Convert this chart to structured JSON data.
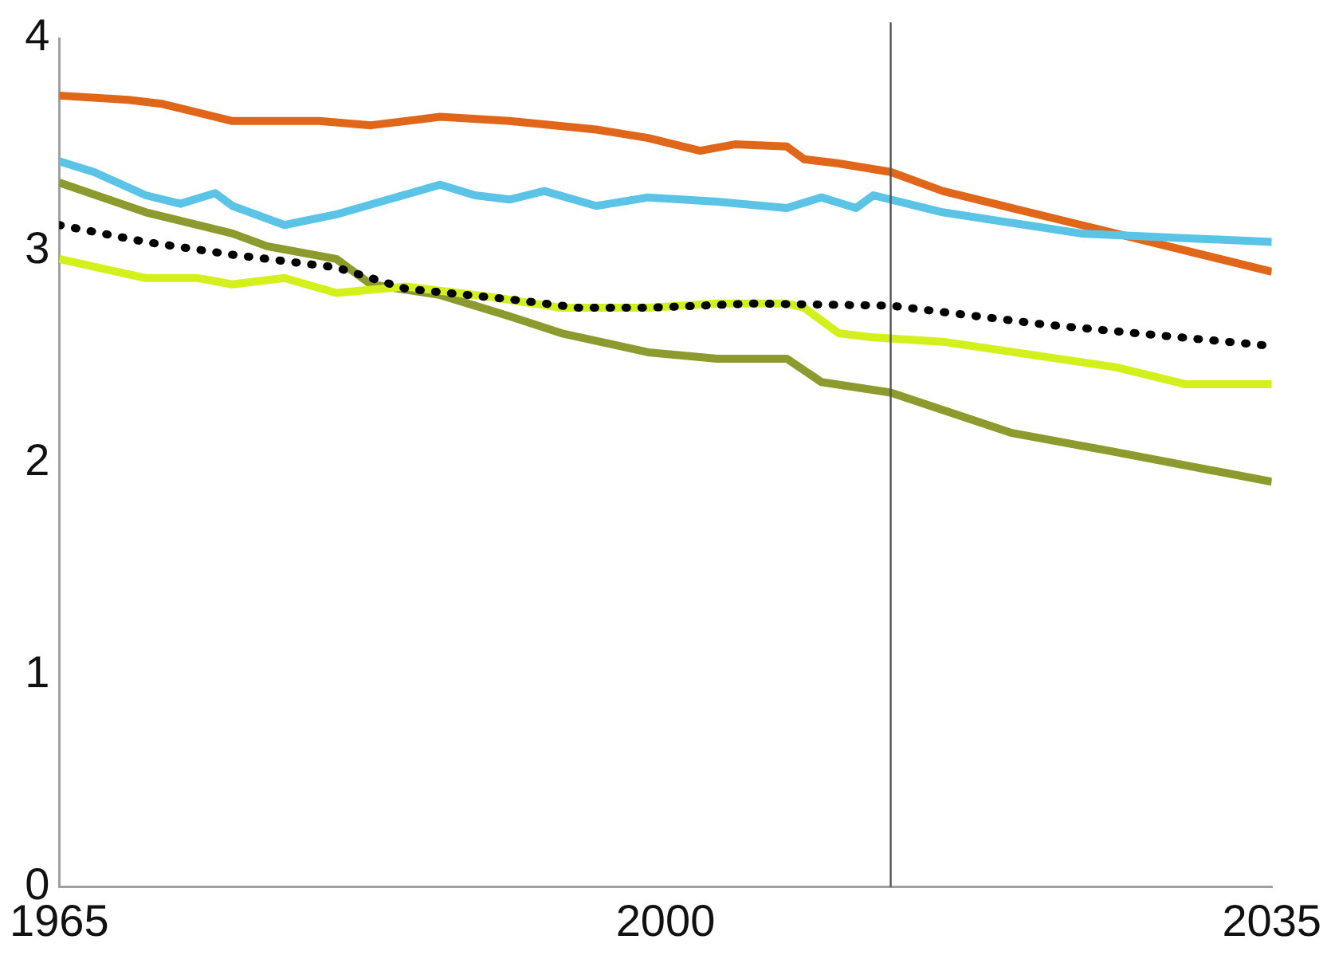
{
  "chart_data": {
    "type": "line",
    "xlim": [
      1965,
      2035
    ],
    "xticks": [
      1965,
      2000,
      2035
    ],
    "ylim": [
      0,
      4
    ],
    "yticks": [
      0,
      1,
      2,
      3,
      4
    ],
    "grid": false,
    "legend": false,
    "marker": "none",
    "ref_lines": [
      {
        "axis": "x",
        "value": 2013,
        "color": "#555555"
      }
    ],
    "series": [
      {
        "color": "#e0661a",
        "line_style": "solid",
        "x": [
          1965,
          1969,
          1971,
          1975,
          1980,
          1983,
          1987,
          1991,
          1996,
          1999,
          2002,
          2004,
          2007,
          2008,
          2010,
          2013,
          2016,
          2024,
          2035
        ],
        "values": [
          3.73,
          3.71,
          3.69,
          3.61,
          3.61,
          3.59,
          3.63,
          3.61,
          3.57,
          3.53,
          3.47,
          3.5,
          3.49,
          3.43,
          3.41,
          3.37,
          3.28,
          3.12,
          2.9
        ]
      },
      {
        "color": "#5bc4e6",
        "line_style": "solid",
        "x": [
          1965,
          1967,
          1970,
          1972,
          1974,
          1975,
          1978,
          1981,
          1984,
          1987,
          1989,
          1991,
          1993,
          1996,
          1999,
          2003,
          2007,
          2009,
          2011,
          2012,
          2016,
          2024,
          2035
        ],
        "values": [
          3.42,
          3.37,
          3.26,
          3.22,
          3.27,
          3.21,
          3.12,
          3.17,
          3.24,
          3.31,
          3.26,
          3.24,
          3.28,
          3.21,
          3.25,
          3.23,
          3.2,
          3.25,
          3.2,
          3.26,
          3.18,
          3.08,
          3.04
        ]
      },
      {
        "color": "#8c9a2e",
        "line_style": "solid",
        "x": [
          1965,
          1970,
          1975,
          1977,
          1981,
          1983,
          1987,
          1991,
          1994,
          1999,
          2003,
          2007,
          2009,
          2013,
          2020,
          2026,
          2035
        ],
        "values": [
          3.32,
          3.18,
          3.08,
          3.02,
          2.96,
          2.84,
          2.79,
          2.69,
          2.61,
          2.52,
          2.49,
          2.49,
          2.38,
          2.33,
          2.14,
          2.05,
          1.91
        ]
      },
      {
        "color": "#d4f01c",
        "line_style": "solid",
        "x": [
          1965,
          1970,
          1973,
          1975,
          1978,
          1981,
          1985,
          1990,
          1994,
          1999,
          2003,
          2007,
          2008,
          2010,
          2012,
          2016,
          2026,
          2030,
          2035
        ],
        "values": [
          2.96,
          2.87,
          2.87,
          2.84,
          2.87,
          2.8,
          2.83,
          2.78,
          2.73,
          2.73,
          2.75,
          2.75,
          2.73,
          2.61,
          2.59,
          2.57,
          2.45,
          2.37,
          2.37
        ]
      },
      {
        "color": "#000000",
        "line_style": "dotted",
        "x": [
          1965,
          1970,
          1975,
          1981,
          1985,
          1991,
          1995,
          1999,
          2005,
          2013,
          2022,
          2035
        ],
        "values": [
          3.12,
          3.04,
          2.98,
          2.92,
          2.82,
          2.77,
          2.73,
          2.73,
          2.75,
          2.74,
          2.65,
          2.55
        ]
      }
    ]
  }
}
